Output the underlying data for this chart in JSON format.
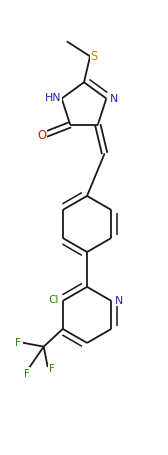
{
  "bg_color": "#ffffff",
  "bond_color": "#1a1a1a",
  "heteroatom_colors": {
    "S": "#cc8800",
    "N": "#2222bb",
    "O": "#cc2200",
    "Cl": "#228800",
    "F": "#228800"
  },
  "line_width": 1.3,
  "dbo": 0.018,
  "figsize": [
    1.68,
    4.56
  ],
  "dpi": 100,
  "xlim": [
    0.1,
    0.9
  ],
  "ylim": [
    0.0,
    3.0
  ]
}
